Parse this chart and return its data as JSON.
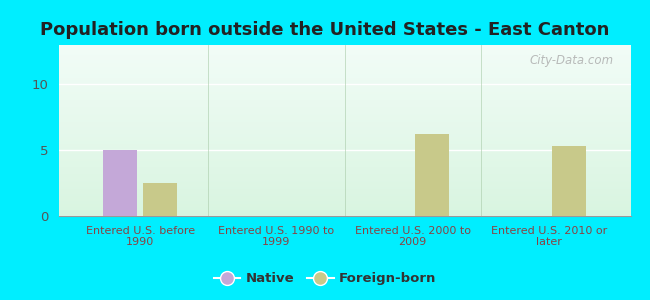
{
  "title": "Population born outside the United States - East Canton",
  "categories": [
    "Entered U.S. before\n1990",
    "Entered U.S. 1990 to\n1999",
    "Entered U.S. 2000 to\n2009",
    "Entered U.S. 2010 or\nlater"
  ],
  "native_values": [
    5,
    0,
    0,
    0
  ],
  "foreign_values": [
    2.5,
    0,
    6.2,
    5.3
  ],
  "native_color": "#c4a8d8",
  "foreign_color": "#c8c98a",
  "ylim": [
    0,
    13
  ],
  "yticks": [
    0,
    5,
    10
  ],
  "background_outer": "#00eeff",
  "bar_width": 0.25,
  "title_fontsize": 13,
  "title_color": "#222222",
  "tick_label_color": "#555555",
  "xticklabel_color": "#884444",
  "watermark": "City-Data.com",
  "legend_native_label": "Native",
  "legend_foreign_label": "Foreign-born",
  "legend_label_color": "#333333"
}
